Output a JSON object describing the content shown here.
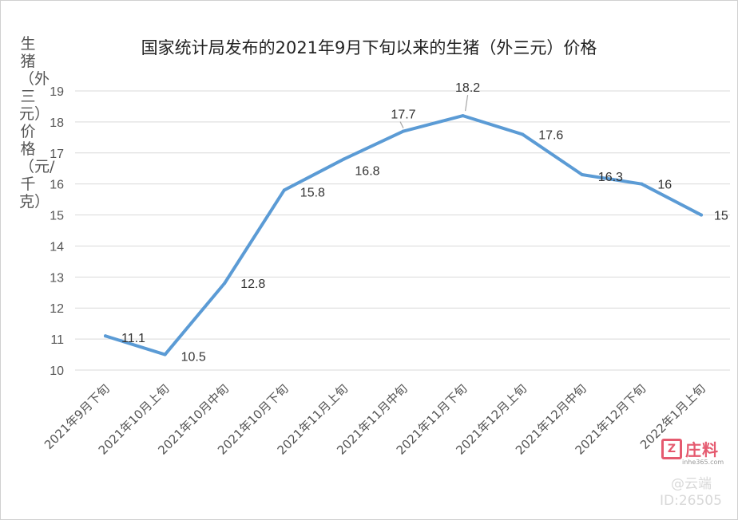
{
  "chart_data": {
    "type": "line",
    "title": "国家统计局发布的2021年9月下旬以来的生猪（外三元）价格",
    "ylabel": "生猪（外三元）价格（元/千克）",
    "xlabel": "",
    "categories": [
      "2021年9月下旬",
      "2021年10月上旬",
      "2021年10月中旬",
      "2021年10月下旬",
      "2021年11月上旬",
      "2021年11月中旬",
      "2021年11月下旬",
      "2021年12月上旬",
      "2021年12月中旬",
      "2021年12月下旬",
      "2022年1月上旬"
    ],
    "series": [
      {
        "values": [
          11.1,
          10.5,
          12.8,
          15.8,
          16.8,
          17.7,
          18.2,
          17.6,
          16.3,
          16,
          15
        ],
        "labels": [
          "11.1",
          "10.5",
          "12.8",
          "15.8",
          "16.8",
          "17.7",
          "18.2",
          "17.6",
          "16.3",
          "16",
          "15"
        ],
        "color": "#5b9bd5"
      }
    ],
    "ylim": [
      10,
      19
    ],
    "yticks": [
      10,
      11,
      12,
      13,
      14,
      15,
      16,
      17,
      18,
      19
    ],
    "grid": true,
    "legend": "none"
  },
  "watermark": {
    "logo_mark": "Z",
    "name": "庄料",
    "site": "inhe365.com",
    "handle": "@云端",
    "id": "ID:26505",
    "color": "#e55a6f"
  }
}
